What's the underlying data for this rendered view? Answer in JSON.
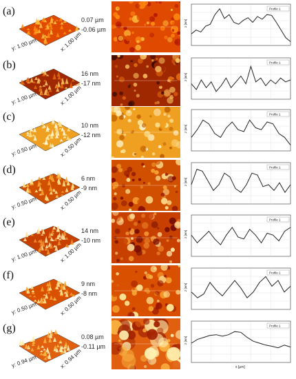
{
  "panels": [
    {
      "label": "(a)",
      "z_top": "0.07 µm",
      "z_bottom": "-0.06 µm",
      "axis_y": "y: 1.00 µm",
      "axis_x": "x: 1.00 µm",
      "profile": [
        0.3,
        0.4,
        0.35,
        0.5,
        0.55,
        0.8,
        0.95,
        0.7,
        0.8,
        0.6,
        0.55,
        0.65,
        0.72,
        0.6,
        0.75,
        0.68,
        0.8,
        0.78,
        0.6,
        0.4,
        0.2,
        0.1
      ],
      "image_palette": [
        "#b01800",
        "#e04a00",
        "#ff8a10",
        "#ffc040"
      ],
      "legend": "Profile 1",
      "y_unit": "z [nm]"
    },
    {
      "label": "(b)",
      "z_top": "16 nm",
      "z_bottom": "-17 nm",
      "axis_y": "y: 1.00 µm",
      "axis_x": "x: 1.00 µm",
      "profile": [
        0.4,
        0.25,
        0.5,
        0.3,
        0.45,
        0.2,
        0.35,
        0.55,
        0.3,
        0.45,
        0.6,
        0.4,
        0.85,
        0.45,
        0.55,
        0.35,
        0.5,
        0.4,
        0.55,
        0.45,
        0.5
      ],
      "image_palette": [
        "#3a0a00",
        "#a02800",
        "#e06a10",
        "#f7c060"
      ],
      "legend": "Profile 1",
      "y_unit": "z [nm]"
    },
    {
      "label": "(c)",
      "z_top": "10 nm",
      "z_bottom": "-12 nm",
      "axis_y": "y: 0.50 µm",
      "axis_x": "x: 0.50 µm",
      "profile": [
        0.35,
        0.55,
        0.8,
        0.7,
        0.45,
        0.35,
        0.6,
        0.75,
        0.55,
        0.5,
        0.8,
        0.6,
        0.55,
        0.75,
        0.7,
        0.45,
        0.35,
        0.15
      ],
      "image_palette": [
        "#c06000",
        "#f0a020",
        "#fde090",
        "#fff5d0"
      ],
      "legend": "Profile 1",
      "y_unit": "z [nm]"
    },
    {
      "label": "(d)",
      "z_top": "6 nm",
      "z_bottom": "-9 nm",
      "axis_y": "y: 0.50 µm",
      "axis_x": "x: 0.50 µm",
      "profile": [
        0.5,
        0.9,
        0.85,
        0.6,
        0.35,
        0.5,
        0.8,
        0.7,
        0.4,
        0.3,
        0.5,
        0.8,
        0.75,
        0.45,
        0.5,
        0.35,
        0.55,
        0.3,
        0.5
      ],
      "image_palette": [
        "#8a1000",
        "#d05000",
        "#f7a030",
        "#ffe090"
      ],
      "legend": "Profile 1",
      "y_unit": "z [nm]"
    },
    {
      "label": "(e)",
      "z_top": "14 nm",
      "z_bottom": "-10 nm",
      "axis_y": "y: 1.00 µm",
      "axis_x": "x: 1.00 µm",
      "profile": [
        0.55,
        0.35,
        0.5,
        0.65,
        0.45,
        0.3,
        0.55,
        0.75,
        0.5,
        0.45,
        0.7,
        0.55,
        0.35,
        0.6,
        0.55,
        0.4,
        0.65,
        0.75
      ],
      "image_palette": [
        "#7a1000",
        "#c84000",
        "#f09030",
        "#ffe0a0"
      ],
      "legend": "Profile 1",
      "y_unit": "z [nm]"
    },
    {
      "label": "(f)",
      "z_top": "9 nm",
      "z_bottom": "-8 nm",
      "axis_y": "y: 0.50 µm",
      "axis_x": "x: 0.50 µm",
      "profile": [
        0.45,
        0.3,
        0.4,
        0.7,
        0.5,
        0.35,
        0.55,
        0.75,
        0.55,
        0.3,
        0.45,
        0.7,
        0.85,
        0.6,
        0.75,
        0.45,
        0.6
      ],
      "image_palette": [
        "#9a1800",
        "#d85000",
        "#f5a030",
        "#ffe090"
      ],
      "legend": "Profile 1",
      "y_unit": "z [nm]"
    },
    {
      "label": "(g)",
      "z_top": "0.08 µm",
      "z_bottom": "-0.11 µm",
      "axis_y": "y: 0.94 µm",
      "axis_x": "x: 0.94 µm",
      "profile": [
        0.5,
        0.6,
        0.65,
        0.7,
        0.72,
        0.68,
        0.72,
        0.8,
        0.78,
        0.65,
        0.55,
        0.5,
        0.45,
        0.42,
        0.38,
        0.45,
        0.4
      ],
      "image_palette": [
        "#a02000",
        "#e06010",
        "#f8b040",
        "#fff0b0"
      ],
      "legend": "Profile 1",
      "y_unit": "z [nm]"
    }
  ],
  "x_axis_label": "x [µm]"
}
